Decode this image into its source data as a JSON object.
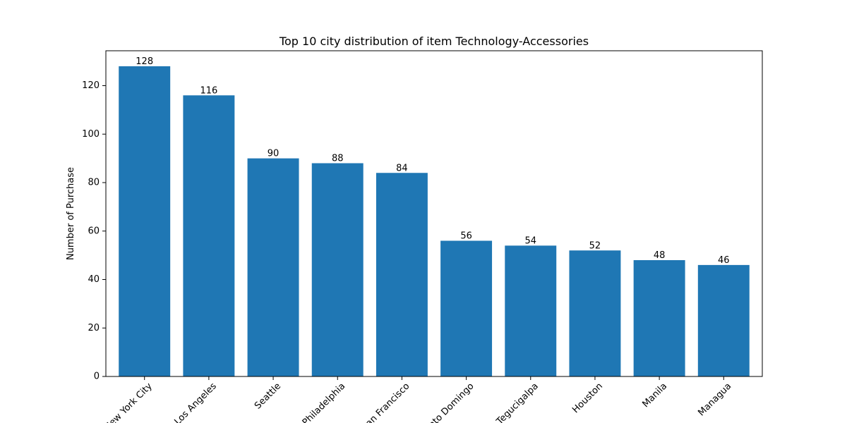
{
  "chart_data": {
    "type": "bar",
    "title": "Top 10 city distribution of item Technology-Accessories",
    "xlabel": "",
    "ylabel": "Number of Purchase",
    "categories": [
      "New York City",
      "Los Angeles",
      "Seattle",
      "Philadelphia",
      "San Francisco",
      "Santo Domingo",
      "Tegucigalpa",
      "Houston",
      "Manila",
      "Managua"
    ],
    "values": [
      128,
      116,
      90,
      88,
      84,
      56,
      54,
      52,
      48,
      46
    ],
    "ylim": [
      0,
      134.4
    ],
    "yticks": [
      0,
      20,
      40,
      60,
      80,
      100,
      120
    ],
    "bar_color": "#1f77b4",
    "grid": false,
    "data_labels": true
  }
}
